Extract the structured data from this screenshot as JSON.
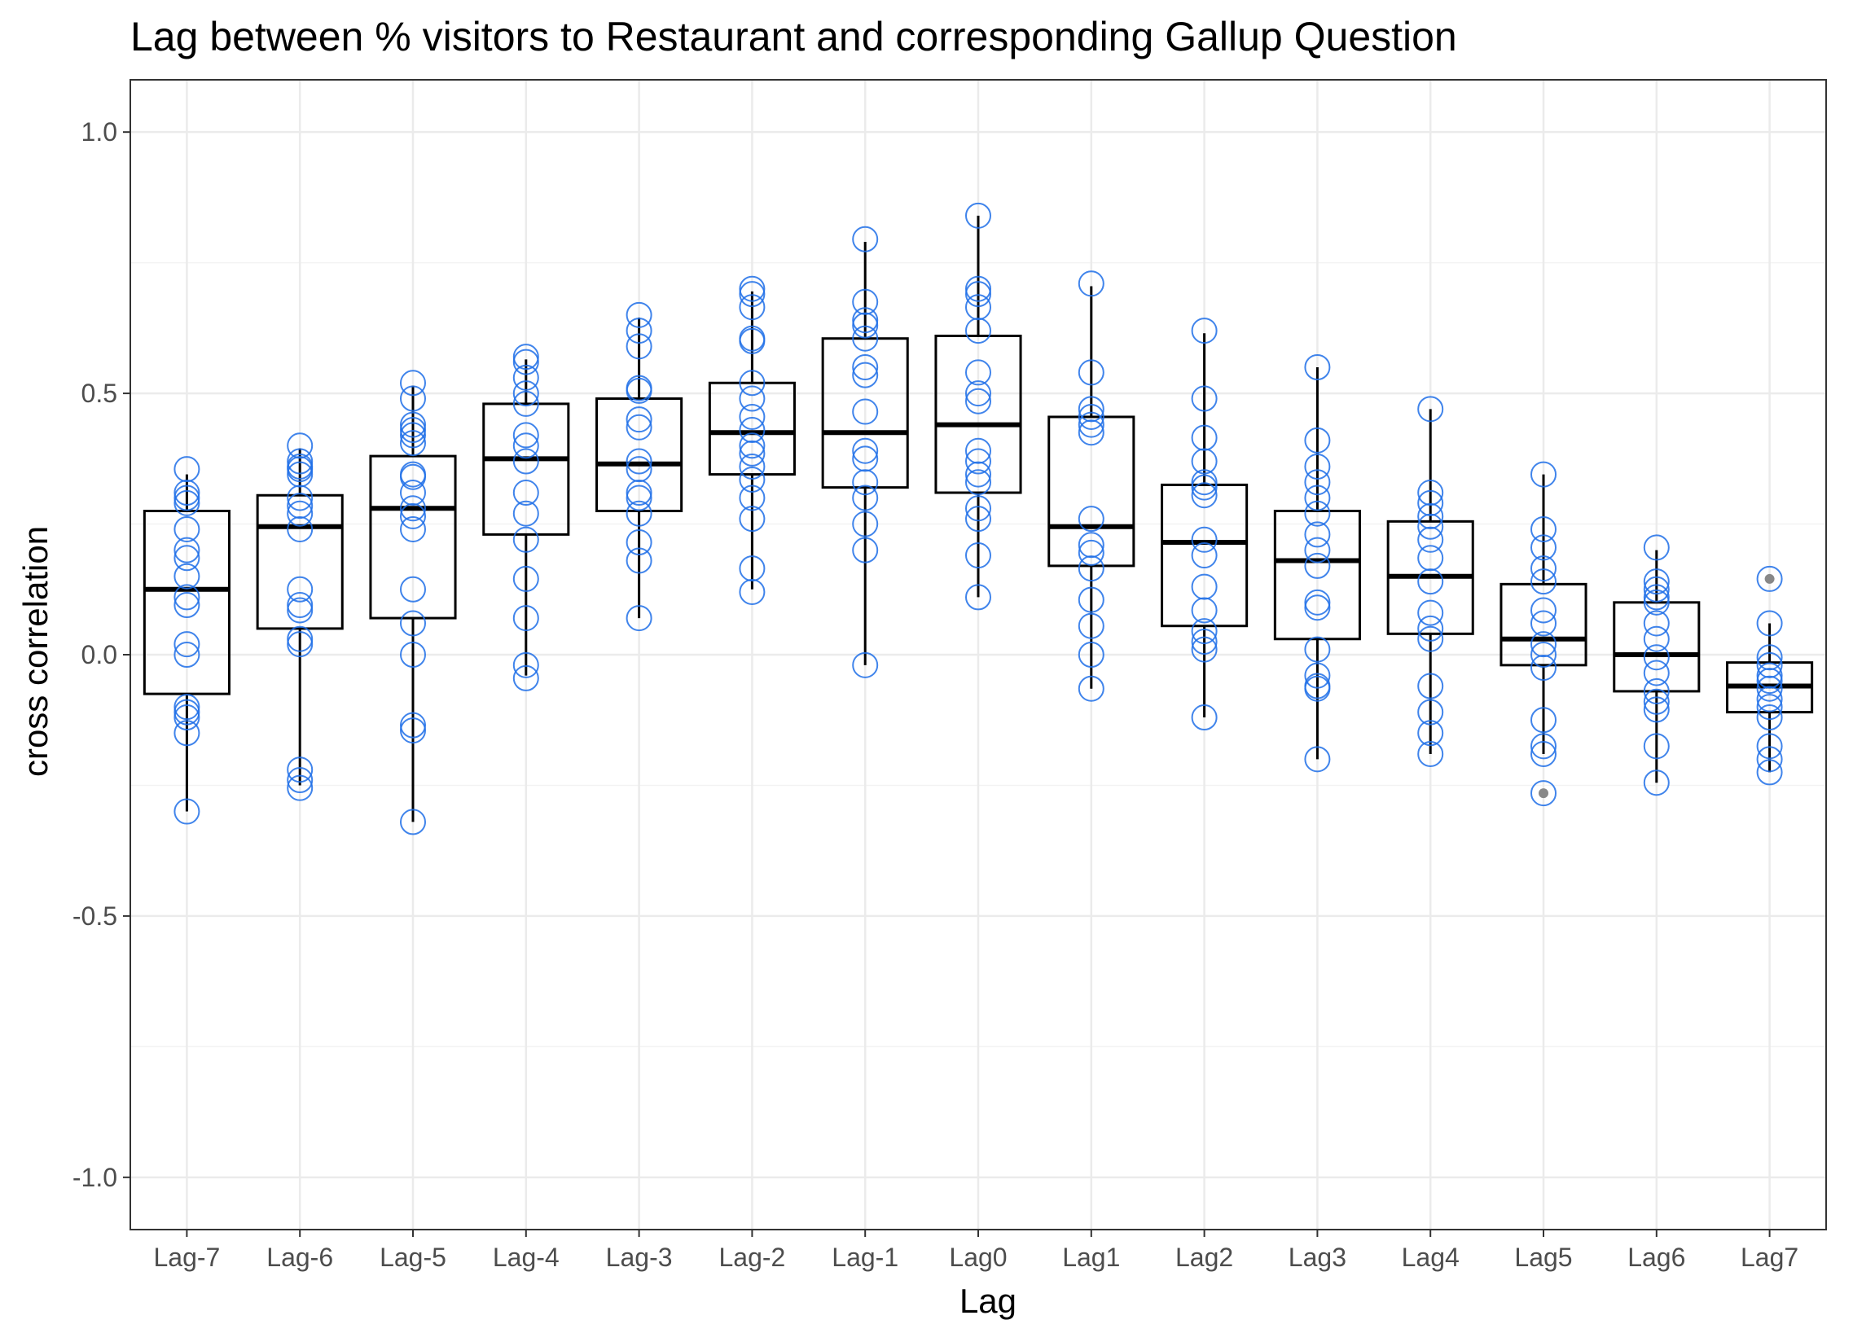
{
  "chart_data": {
    "type": "box",
    "title": "Lag between % visitors to Restaurant and corresponding Gallup Question",
    "xlabel": "Lag",
    "ylabel": "cross correlation",
    "ylim": [
      -1.1,
      1.1
    ],
    "yticks": [
      -1.0,
      -0.5,
      0.0,
      0.5,
      1.0
    ],
    "ytick_labels": [
      "-1.0",
      "-0.5",
      "0.0",
      "0.5",
      "1.0"
    ],
    "grid": true,
    "colors": {
      "points": "#1f6fe8",
      "box": "#000000",
      "outlier": "#888888",
      "grid": "#ebebeb"
    },
    "categories": [
      "Lag-7",
      "Lag-6",
      "Lag-5",
      "Lag-4",
      "Lag-3",
      "Lag-2",
      "Lag-1",
      "Lag0",
      "Lag1",
      "Lag2",
      "Lag3",
      "Lag4",
      "Lag5",
      "Lag6",
      "Lag7"
    ],
    "boxes": [
      {
        "lower": -0.3,
        "q1": -0.075,
        "median": 0.125,
        "q3": 0.275,
        "upper": 0.345,
        "outliers": []
      },
      {
        "lower": -0.25,
        "q1": 0.05,
        "median": 0.245,
        "q3": 0.305,
        "upper": 0.395,
        "outliers": []
      },
      {
        "lower": -0.32,
        "q1": 0.07,
        "median": 0.28,
        "q3": 0.38,
        "upper": 0.515,
        "outliers": []
      },
      {
        "lower": -0.04,
        "q1": 0.23,
        "median": 0.375,
        "q3": 0.48,
        "upper": 0.565,
        "outliers": []
      },
      {
        "lower": 0.07,
        "q1": 0.275,
        "median": 0.365,
        "q3": 0.49,
        "upper": 0.645,
        "outliers": []
      },
      {
        "lower": 0.125,
        "q1": 0.345,
        "median": 0.425,
        "q3": 0.52,
        "upper": 0.695,
        "outliers": []
      },
      {
        "lower": -0.02,
        "q1": 0.32,
        "median": 0.425,
        "q3": 0.605,
        "upper": 0.79,
        "outliers": []
      },
      {
        "lower": 0.11,
        "q1": 0.31,
        "median": 0.44,
        "q3": 0.61,
        "upper": 0.84,
        "outliers": []
      },
      {
        "lower": -0.065,
        "q1": 0.17,
        "median": 0.245,
        "q3": 0.455,
        "upper": 0.705,
        "outliers": []
      },
      {
        "lower": -0.12,
        "q1": 0.055,
        "median": 0.215,
        "q3": 0.325,
        "upper": 0.615,
        "outliers": []
      },
      {
        "lower": -0.2,
        "q1": 0.03,
        "median": 0.18,
        "q3": 0.275,
        "upper": 0.55,
        "outliers": []
      },
      {
        "lower": -0.19,
        "q1": 0.04,
        "median": 0.15,
        "q3": 0.255,
        "upper": 0.47,
        "outliers": []
      },
      {
        "lower": -0.19,
        "q1": -0.02,
        "median": 0.03,
        "q3": 0.135,
        "upper": 0.345,
        "outliers": [
          -0.265
        ]
      },
      {
        "lower": -0.245,
        "q1": -0.07,
        "median": 0.0,
        "q3": 0.1,
        "upper": 0.2,
        "outliers": []
      },
      {
        "lower": -0.225,
        "q1": -0.11,
        "median": -0.06,
        "q3": -0.015,
        "upper": 0.06,
        "outliers": [
          0.145
        ]
      }
    ],
    "points": [
      [
        0.355,
        0.31,
        0.3,
        0.29,
        0.24,
        0.2,
        0.185,
        0.15,
        0.11,
        0.095,
        0.02,
        0.0,
        -0.1,
        -0.11,
        -0.12,
        -0.15,
        -0.3
      ],
      [
        0.4,
        0.37,
        0.36,
        0.355,
        0.345,
        0.3,
        0.285,
        0.27,
        0.24,
        0.125,
        0.095,
        0.085,
        0.03,
        0.02,
        -0.22,
        -0.24,
        -0.255
      ],
      [
        0.52,
        0.49,
        0.44,
        0.43,
        0.42,
        0.405,
        0.345,
        0.34,
        0.31,
        0.28,
        0.265,
        0.24,
        0.125,
        0.06,
        0.0,
        -0.135,
        -0.145,
        -0.32
      ],
      [
        0.57,
        0.56,
        0.53,
        0.5,
        0.48,
        0.42,
        0.4,
        0.37,
        0.31,
        0.27,
        0.22,
        0.145,
        0.07,
        -0.02,
        -0.045
      ],
      [
        0.65,
        0.62,
        0.59,
        0.51,
        0.505,
        0.45,
        0.435,
        0.37,
        0.355,
        0.31,
        0.3,
        0.27,
        0.215,
        0.18,
        0.07
      ],
      [
        0.7,
        0.69,
        0.665,
        0.605,
        0.6,
        0.52,
        0.49,
        0.455,
        0.43,
        0.4,
        0.385,
        0.36,
        0.335,
        0.3,
        0.26,
        0.165,
        0.12
      ],
      [
        0.795,
        0.675,
        0.64,
        0.63,
        0.605,
        0.55,
        0.535,
        0.465,
        0.39,
        0.375,
        0.33,
        0.3,
        0.25,
        0.2,
        -0.02
      ],
      [
        0.84,
        0.7,
        0.69,
        0.665,
        0.62,
        0.54,
        0.5,
        0.485,
        0.39,
        0.37,
        0.345,
        0.33,
        0.28,
        0.26,
        0.19,
        0.11
      ],
      [
        0.71,
        0.54,
        0.47,
        0.455,
        0.44,
        0.425,
        0.26,
        0.21,
        0.195,
        0.165,
        0.105,
        0.055,
        0.0,
        -0.065
      ],
      [
        0.62,
        0.49,
        0.415,
        0.37,
        0.33,
        0.32,
        0.305,
        0.22,
        0.19,
        0.13,
        0.085,
        0.045,
        0.025,
        0.01,
        -0.12
      ],
      [
        0.55,
        0.41,
        0.36,
        0.33,
        0.3,
        0.27,
        0.23,
        0.2,
        0.17,
        0.1,
        0.09,
        0.01,
        -0.04,
        -0.06,
        -0.065,
        -0.2
      ],
      [
        0.47,
        0.31,
        0.29,
        0.265,
        0.245,
        0.22,
        0.185,
        0.14,
        0.08,
        0.05,
        0.03,
        -0.06,
        -0.11,
        -0.15,
        -0.19
      ],
      [
        0.345,
        0.24,
        0.205,
        0.165,
        0.14,
        0.085,
        0.06,
        0.02,
        0.0,
        -0.025,
        -0.125,
        -0.175,
        -0.19,
        -0.265
      ],
      [
        0.205,
        0.14,
        0.125,
        0.11,
        0.1,
        0.06,
        0.03,
        -0.005,
        -0.035,
        -0.07,
        -0.09,
        -0.105,
        -0.175,
        -0.245
      ],
      [
        0.145,
        0.06,
        -0.005,
        -0.02,
        -0.04,
        -0.05,
        -0.065,
        -0.085,
        -0.1,
        -0.12,
        -0.175,
        -0.2,
        -0.225
      ]
    ]
  }
}
